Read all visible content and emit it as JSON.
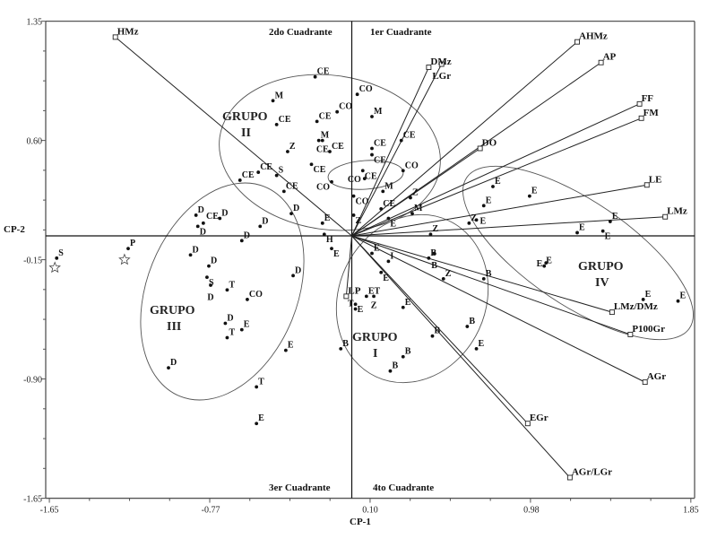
{
  "chart_data": {
    "type": "scatter",
    "subtype": "biplot",
    "xlabel": "CP-1",
    "ylabel": "CP-2",
    "xlim": [
      -1.65,
      1.85
    ],
    "ylim": [
      -1.65,
      1.35
    ],
    "xticks": [
      "-1.65",
      "-0.77",
      "0.10",
      "0.98",
      "1.85"
    ],
    "xtick_values": [
      -1.65,
      -0.77,
      0.1,
      0.98,
      1.85
    ],
    "yticks": [
      "1.35",
      "0.60",
      "-0.15",
      "-0.90",
      "-1.65"
    ],
    "ytick_values": [
      1.35,
      0.6,
      -0.15,
      -0.9,
      -1.65
    ],
    "quadrants": [
      "2do Cuadrante",
      "1er Cuadrante",
      "3er Cuadrante",
      "4to Cuadrante"
    ],
    "groups": [
      {
        "name": "GRUPO",
        "num": "II"
      },
      {
        "name": "GRUPO",
        "num": "III"
      },
      {
        "name": "GRUPO",
        "num": "I"
      },
      {
        "name": "GRUPO",
        "num": "IV"
      }
    ],
    "vectors": [
      {
        "label": "HMz",
        "x": -1.29,
        "y": 1.25
      },
      {
        "label": "DMz",
        "x": 0.42,
        "y": 1.06
      },
      {
        "label": "LGr",
        "x": 0.49,
        "y": 1.08
      },
      {
        "label": "AHMz",
        "x": 1.23,
        "y": 1.22
      },
      {
        "label": "AP",
        "x": 1.36,
        "y": 1.09
      },
      {
        "label": "FF",
        "x": 1.57,
        "y": 0.83
      },
      {
        "label": "FM",
        "x": 1.58,
        "y": 0.74
      },
      {
        "label": "DO",
        "x": 0.7,
        "y": 0.55
      },
      {
        "label": "LE",
        "x": 1.61,
        "y": 0.32
      },
      {
        "label": "LMz",
        "x": 1.71,
        "y": 0.12
      },
      {
        "label": "LMz/DMz",
        "x": 1.42,
        "y": -0.48
      },
      {
        "label": "P100Gr",
        "x": 1.52,
        "y": -0.62
      },
      {
        "label": "AGr",
        "x": 1.6,
        "y": -0.92
      },
      {
        "label": "EGr",
        "x": 0.96,
        "y": -1.18
      },
      {
        "label": "AGr/LGr",
        "x": 1.19,
        "y": -1.52
      },
      {
        "label": "LP",
        "x": -0.03,
        "y": -0.38
      }
    ],
    "points": [
      {
        "label": "CE",
        "x": -0.2,
        "y": 1.0
      },
      {
        "label": "CO",
        "x": 0.03,
        "y": 0.89
      },
      {
        "label": "M",
        "x": -0.43,
        "y": 0.85
      },
      {
        "label": "CO",
        "x": -0.08,
        "y": 0.78
      },
      {
        "label": "M",
        "x": 0.11,
        "y": 0.75
      },
      {
        "label": "CE",
        "x": -0.41,
        "y": 0.7
      },
      {
        "label": "CE",
        "x": -0.19,
        "y": 0.72
      },
      {
        "label": "M",
        "x": -0.18,
        "y": 0.6
      },
      {
        "label": "CE",
        "x": -0.16,
        "y": 0.6
      },
      {
        "label": "CE",
        "x": 0.27,
        "y": 0.6
      },
      {
        "label": "CE",
        "x": -0.12,
        "y": 0.53
      },
      {
        "label": "Z",
        "x": -0.35,
        "y": 0.53
      },
      {
        "label": "CE",
        "x": 0.11,
        "y": 0.55
      },
      {
        "label": "CE",
        "x": 0.11,
        "y": 0.51
      },
      {
        "label": "CE",
        "x": -0.22,
        "y": 0.45
      },
      {
        "label": "CE",
        "x": 0.06,
        "y": 0.41
      },
      {
        "label": "CO",
        "x": 0.28,
        "y": 0.41
      },
      {
        "label": "CE",
        "x": -0.51,
        "y": 0.4
      },
      {
        "label": "S",
        "x": -0.41,
        "y": 0.38
      },
      {
        "label": "CE",
        "x": -0.61,
        "y": 0.35
      },
      {
        "label": "CO",
        "x": 0.07,
        "y": 0.36
      },
      {
        "label": "CO",
        "x": -0.11,
        "y": 0.34
      },
      {
        "label": "CE",
        "x": -0.37,
        "y": 0.28
      },
      {
        "label": "CO",
        "x": 0.01,
        "y": 0.25
      },
      {
        "label": "M",
        "x": 0.17,
        "y": 0.28
      },
      {
        "label": "Z",
        "x": 0.32,
        "y": 0.24
      },
      {
        "label": "CE",
        "x": 0.16,
        "y": 0.17
      },
      {
        "label": "M",
        "x": 0.33,
        "y": 0.14
      },
      {
        "label": "E",
        "x": 0.2,
        "y": 0.11
      },
      {
        "label": "Z",
        "x": 0.01,
        "y": 0.13
      },
      {
        "label": "D",
        "x": -0.33,
        "y": 0.14
      },
      {
        "label": "E",
        "x": -0.16,
        "y": 0.08
      },
      {
        "label": "H",
        "x": -0.15,
        "y": 0.01
      },
      {
        "label": "Z",
        "x": 0.43,
        "y": 0.01
      },
      {
        "label": "D",
        "x": -0.85,
        "y": 0.13
      },
      {
        "label": "D",
        "x": -0.84,
        "y": 0.06
      },
      {
        "label": "CE",
        "x": -0.81,
        "y": 0.08
      },
      {
        "label": "D",
        "x": -0.72,
        "y": 0.11
      },
      {
        "label": "D",
        "x": -0.5,
        "y": 0.06
      },
      {
        "label": "D",
        "x": -0.6,
        "y": -0.03
      },
      {
        "label": "D",
        "x": -0.88,
        "y": -0.12
      },
      {
        "label": "D",
        "x": -0.78,
        "y": -0.19
      },
      {
        "label": "S",
        "x": -0.79,
        "y": -0.26
      },
      {
        "label": "D",
        "x": -0.77,
        "y": -0.31
      },
      {
        "label": "T",
        "x": -0.68,
        "y": -0.34
      },
      {
        "label": "CO",
        "x": -0.57,
        "y": -0.4
      },
      {
        "label": "D",
        "x": -0.32,
        "y": -0.25
      },
      {
        "label": "D",
        "x": -0.69,
        "y": -0.55
      },
      {
        "label": "E",
        "x": -0.6,
        "y": -0.59
      },
      {
        "label": "T",
        "x": -0.68,
        "y": -0.64
      },
      {
        "label": "E",
        "x": -0.36,
        "y": -0.72
      },
      {
        "label": "D",
        "x": -1.0,
        "y": -0.83
      },
      {
        "label": "T",
        "x": -0.52,
        "y": -0.95
      },
      {
        "label": "E",
        "x": -0.52,
        "y": -1.18
      },
      {
        "label": "E",
        "x": -0.11,
        "y": -0.08
      },
      {
        "label": "B",
        "x": -0.06,
        "y": -0.71
      },
      {
        "label": "E",
        "x": 0.11,
        "y": -0.11
      },
      {
        "label": "I",
        "x": 0.2,
        "y": -0.16
      },
      {
        "label": "B",
        "x": 0.42,
        "y": -0.14
      },
      {
        "label": "B",
        "x": 0.45,
        "y": -0.11
      },
      {
        "label": "E",
        "x": 0.16,
        "y": -0.23
      },
      {
        "label": "Z",
        "x": 0.5,
        "y": -0.27
      },
      {
        "label": "B",
        "x": 0.72,
        "y": -0.27
      },
      {
        "label": "E",
        "x": 0.02,
        "y": -0.43
      },
      {
        "label": "T",
        "x": 0.02,
        "y": -0.46
      },
      {
        "label": "ET",
        "x": 0.08,
        "y": -0.38
      },
      {
        "label": "Z",
        "x": 0.12,
        "y": -0.38
      },
      {
        "label": "E",
        "x": 0.28,
        "y": -0.45
      },
      {
        "label": "B",
        "x": 0.63,
        "y": -0.57
      },
      {
        "label": "B",
        "x": 0.44,
        "y": -0.63
      },
      {
        "label": "E",
        "x": 0.68,
        "y": -0.71
      },
      {
        "label": "B",
        "x": 0.28,
        "y": -0.76
      },
      {
        "label": "B",
        "x": 0.21,
        "y": -0.85
      },
      {
        "label": "E",
        "x": 0.77,
        "y": 0.31
      },
      {
        "label": "E",
        "x": 0.97,
        "y": 0.25
      },
      {
        "label": "E",
        "x": 0.72,
        "y": 0.19
      },
      {
        "label": "Z",
        "x": 0.64,
        "y": 0.08
      },
      {
        "label": "E",
        "x": 0.68,
        "y": 0.1
      },
      {
        "label": "E",
        "x": 1.23,
        "y": 0.02
      },
      {
        "label": "E",
        "x": 1.41,
        "y": 0.09
      },
      {
        "label": "E",
        "x": 1.37,
        "y": 0.03
      },
      {
        "label": "E",
        "x": 1.05,
        "y": -0.19
      },
      {
        "label": "E",
        "x": 1.06,
        "y": -0.17
      },
      {
        "label": "E",
        "x": 1.59,
        "y": -0.4
      },
      {
        "label": "E",
        "x": 1.78,
        "y": -0.41
      },
      {
        "label": "S",
        "x": -1.61,
        "y": -0.14
      },
      {
        "label": "P",
        "x": -1.22,
        "y": -0.08
      }
    ],
    "stars": [
      {
        "x": -1.62,
        "y": -0.2
      },
      {
        "x": -1.24,
        "y": -0.15
      }
    ]
  }
}
